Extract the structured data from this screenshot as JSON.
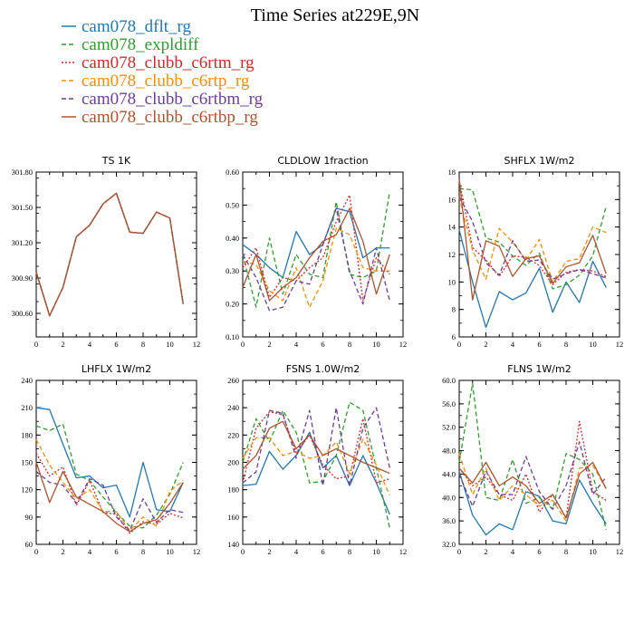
{
  "figure": {
    "title": "Time Series at229E,9N"
  },
  "legend": [
    {
      "name": "cam078_dflt_rg",
      "color": "#1f77b4",
      "dash": "solid"
    },
    {
      "name": "cam078_expldiff",
      "color": "#2ca02c",
      "dash": "dash"
    },
    {
      "name": "cam078_clubb_c6rtm_rg",
      "color": "#d62728",
      "dash": "dot"
    },
    {
      "name": "cam078_clubb_c6rtp_rg",
      "color": "#ff8c00",
      "dash": "dash"
    },
    {
      "name": "cam078_clubb_c6rtbm_rg",
      "color": "#6a3d9a",
      "dash": "dash"
    },
    {
      "name": "cam078_clubb_c6rtbp_rg",
      "color": "#b0522a",
      "dash": "solid"
    }
  ],
  "chart_data": [
    {
      "type": "line",
      "title": "TS 1K",
      "x": [
        0,
        1,
        2,
        3,
        4,
        5,
        6,
        7,
        8,
        9,
        10,
        11
      ],
      "xlim": [
        0,
        12
      ],
      "ylim": [
        300.4,
        301.8
      ],
      "yticks": [
        300.6,
        300.9,
        301.2,
        301.5,
        301.8
      ],
      "ytick_labels": [
        "300.60",
        "300.90",
        "301.20",
        "301.50",
        "301.80"
      ],
      "xtick_labels": [
        "0",
        "2",
        "4",
        "6",
        "8",
        "10",
        "12"
      ],
      "series": [
        {
          "values": [
            300.95,
            300.58,
            300.82,
            301.25,
            301.35,
            301.53,
            301.62,
            301.29,
            301.28,
            301.46,
            301.41,
            300.68
          ]
        },
        {
          "values": [
            300.95,
            300.58,
            300.82,
            301.25,
            301.35,
            301.53,
            301.62,
            301.29,
            301.28,
            301.46,
            301.41,
            300.68
          ]
        },
        {
          "values": [
            300.95,
            300.58,
            300.82,
            301.25,
            301.35,
            301.53,
            301.62,
            301.29,
            301.28,
            301.46,
            301.41,
            300.68
          ]
        },
        {
          "values": [
            300.95,
            300.58,
            300.82,
            301.25,
            301.35,
            301.53,
            301.62,
            301.29,
            301.28,
            301.46,
            301.41,
            300.68
          ]
        },
        {
          "values": [
            300.95,
            300.58,
            300.82,
            301.25,
            301.35,
            301.53,
            301.62,
            301.29,
            301.28,
            301.46,
            301.41,
            300.68
          ]
        },
        {
          "values": [
            300.95,
            300.58,
            300.82,
            301.25,
            301.35,
            301.53,
            301.62,
            301.29,
            301.28,
            301.46,
            301.41,
            300.68
          ]
        }
      ]
    },
    {
      "type": "line",
      "title": "CLDLOW 1fraction",
      "x": [
        0,
        1,
        2,
        3,
        4,
        5,
        6,
        7,
        8,
        9,
        10,
        11
      ],
      "xlim": [
        0,
        12
      ],
      "ylim": [
        0.1,
        0.6
      ],
      "yticks": [
        0.1,
        0.2,
        0.3,
        0.4,
        0.5,
        0.6
      ],
      "ytick_labels": [
        "0.10",
        "0.20",
        "0.30",
        "0.40",
        "0.50",
        "0.60"
      ],
      "xtick_labels": [
        "0",
        "2",
        "4",
        "6",
        "8",
        "10",
        "12"
      ],
      "series": [
        {
          "values": [
            0.38,
            0.35,
            0.31,
            0.28,
            0.42,
            0.35,
            0.38,
            0.49,
            0.48,
            0.34,
            0.37,
            0.37
          ]
        },
        {
          "values": [
            0.35,
            0.19,
            0.4,
            0.23,
            0.35,
            0.29,
            0.28,
            0.51,
            0.29,
            0.28,
            0.3,
            0.54
          ]
        },
        {
          "values": [
            0.31,
            0.37,
            0.22,
            0.28,
            0.27,
            0.31,
            0.34,
            0.45,
            0.53,
            0.21,
            0.34,
            0.29
          ]
        },
        {
          "values": [
            0.33,
            0.32,
            0.24,
            0.21,
            0.31,
            0.19,
            0.27,
            0.43,
            0.41,
            0.31,
            0.3,
            0.3
          ]
        },
        {
          "values": [
            0.35,
            0.28,
            0.18,
            0.19,
            0.27,
            0.26,
            0.38,
            0.49,
            0.3,
            0.2,
            0.37,
            0.21
          ]
        },
        {
          "values": [
            0.25,
            0.35,
            0.21,
            0.25,
            0.28,
            0.34,
            0.39,
            0.41,
            0.49,
            0.39,
            0.23,
            0.35
          ]
        }
      ]
    },
    {
      "type": "line",
      "title": "SHFLX 1W/m2",
      "x": [
        0,
        1,
        2,
        3,
        4,
        5,
        6,
        7,
        8,
        9,
        10,
        11
      ],
      "xlim": [
        0,
        12
      ],
      "ylim": [
        6,
        18
      ],
      "yticks": [
        6,
        8,
        10,
        12,
        14,
        16,
        18
      ],
      "ytick_labels": [
        "6",
        "8",
        "10",
        "12",
        "14",
        "16",
        "18"
      ],
      "xtick_labels": [
        "0",
        "2",
        "4",
        "6",
        "8",
        "10",
        "12"
      ],
      "series": [
        {
          "values": [
            13.8,
            10.0,
            6.7,
            9.3,
            8.7,
            9.2,
            11.0,
            7.8,
            10.0,
            8.5,
            11.5,
            9.6
          ]
        },
        {
          "values": [
            16.8,
            16.7,
            13.2,
            12.9,
            11.9,
            11.2,
            12.1,
            9.5,
            9.8,
            10.5,
            11.9,
            15.5
          ]
        },
        {
          "values": [
            17.4,
            12.5,
            11.6,
            10.4,
            11.9,
            11.8,
            11.2,
            9.8,
            10.7,
            10.9,
            10.8,
            10.4
          ]
        },
        {
          "values": [
            16.2,
            12.3,
            10.2,
            13.9,
            12.9,
            11.6,
            13.1,
            10.0,
            11.5,
            11.7,
            14.0,
            13.6
          ]
        },
        {
          "values": [
            16.2,
            14.4,
            11.4,
            10.5,
            13.0,
            11.5,
            11.6,
            10.2,
            10.6,
            10.9,
            10.6,
            10.3
          ]
        },
        {
          "values": [
            17.5,
            8.7,
            13.0,
            12.6,
            10.4,
            11.7,
            11.9,
            9.9,
            11.1,
            11.4,
            13.4,
            10.6
          ]
        }
      ]
    },
    {
      "type": "line",
      "title": "LHFLX 1W/m2",
      "x": [
        0,
        1,
        2,
        3,
        4,
        5,
        6,
        7,
        8,
        9,
        10,
        11
      ],
      "xlim": [
        0,
        12
      ],
      "ylim": [
        60,
        240
      ],
      "yticks": [
        60,
        90,
        120,
        150,
        180,
        210,
        240
      ],
      "ytick_labels": [
        "60",
        "90",
        "120",
        "150",
        "180",
        "210",
        "240"
      ],
      "xtick_labels": [
        "0",
        "2",
        "4",
        "6",
        "8",
        "10",
        "12"
      ],
      "series": [
        {
          "values": [
            210,
            208,
            170,
            133,
            135,
            122,
            125,
            90,
            150,
            98,
            96,
            128
          ]
        },
        {
          "values": [
            190,
            185,
            192,
            137,
            130,
            112,
            95,
            80,
            78,
            92,
            115,
            150
          ]
        },
        {
          "values": [
            160,
            135,
            145,
            103,
            130,
            95,
            93,
            72,
            85,
            82,
            94,
            89
          ]
        },
        {
          "values": [
            175,
            147,
            128,
            110,
            120,
            96,
            96,
            75,
            90,
            80,
            118,
            130
          ]
        },
        {
          "values": [
            140,
            128,
            125,
            105,
            132,
            125,
            90,
            75,
            110,
            84,
            98,
            95
          ]
        },
        {
          "values": [
            150,
            106,
            140,
            112,
            104,
            96,
            83,
            74,
            83,
            87,
            105,
            128
          ]
        }
      ]
    },
    {
      "type": "line",
      "title": "FSNS 1.0W/m2",
      "x": [
        0,
        1,
        2,
        3,
        4,
        5,
        6,
        7,
        8,
        9,
        10,
        11
      ],
      "xlim": [
        0,
        12
      ],
      "ylim": [
        140,
        260
      ],
      "yticks": [
        140,
        160,
        180,
        200,
        220,
        240,
        260
      ],
      "ytick_labels": [
        "140",
        "160",
        "180",
        "200",
        "220",
        "240",
        "260"
      ],
      "xtick_labels": [
        "0",
        "2",
        "4",
        "6",
        "8",
        "10",
        "12"
      ],
      "series": [
        {
          "values": [
            183,
            184,
            208,
            195,
            205,
            222,
            196,
            205,
            183,
            205,
            185,
            162
          ]
        },
        {
          "values": [
            200,
            232,
            215,
            238,
            222,
            185,
            186,
            205,
            244,
            238,
            196,
            152
          ]
        },
        {
          "values": [
            185,
            225,
            237,
            235,
            207,
            220,
            198,
            188,
            190,
            232,
            185,
            188
          ]
        },
        {
          "values": [
            203,
            218,
            218,
            205,
            208,
            203,
            205,
            215,
            192,
            217,
            198,
            176
          ]
        },
        {
          "values": [
            185,
            193,
            238,
            236,
            203,
            238,
            183,
            240,
            183,
            225,
            240,
            196
          ]
        },
        {
          "values": [
            195,
            205,
            225,
            230,
            210,
            220,
            205,
            210,
            205,
            200,
            196,
            192
          ]
        }
      ]
    },
    {
      "type": "line",
      "title": "FLNS 1W/m2",
      "x": [
        0,
        1,
        2,
        3,
        4,
        5,
        6,
        7,
        8,
        9,
        10,
        11
      ],
      "xlim": [
        0,
        12
      ],
      "ylim": [
        32,
        60
      ],
      "yticks": [
        32,
        36,
        40,
        44,
        48,
        52,
        56,
        60
      ],
      "ytick_labels": [
        "32.0",
        "36.0",
        "40.0",
        "44.0",
        "48.0",
        "52.0",
        "56.0",
        "60.0"
      ],
      "xtick_labels": [
        "0",
        "2",
        "4",
        "6",
        "8",
        "10",
        "12"
      ],
      "series": [
        {
          "values": [
            44.5,
            37.0,
            33.6,
            35.5,
            34.5,
            41.0,
            40.2,
            36.0,
            35.5,
            43.0,
            39.0,
            35.5
          ]
        },
        {
          "values": [
            46.0,
            59.5,
            40.0,
            39.5,
            46.5,
            39.0,
            40.0,
            38.0,
            47.5,
            46.5,
            44.0,
            34.5
          ]
        },
        {
          "values": [
            45.0,
            42.0,
            43.5,
            40.5,
            39.5,
            44.0,
            37.5,
            40.5,
            36.5,
            53.0,
            41.0,
            39.5
          ]
        },
        {
          "values": [
            47.5,
            40.5,
            45.0,
            39.5,
            42.0,
            40.5,
            38.5,
            39.5,
            36.0,
            45.0,
            45.5,
            41.5
          ]
        },
        {
          "values": [
            44.0,
            38.5,
            44.5,
            40.5,
            40.5,
            47.0,
            41.0,
            38.0,
            42.0,
            49.5,
            40.5,
            43.5
          ]
        },
        {
          "values": [
            45.0,
            42.5,
            46.0,
            42.0,
            43.5,
            42.0,
            39.0,
            40.5,
            36.5,
            44.0,
            46.0,
            41.5
          ]
        }
      ]
    }
  ]
}
